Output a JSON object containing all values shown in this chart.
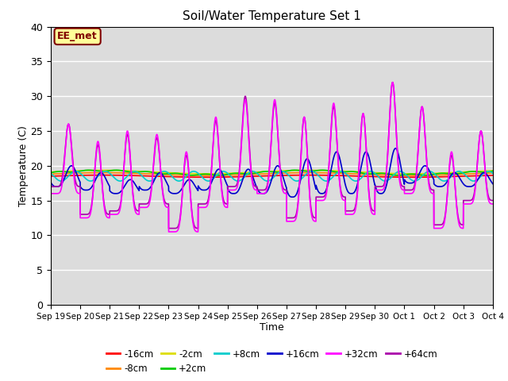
{
  "title": "Soil/Water Temperature Set 1",
  "xlabel": "Time",
  "ylabel": "Temperature (C)",
  "ylim": [
    0,
    40
  ],
  "background_color": "#dcdcdc",
  "annotation_text": "EE_met",
  "annotation_bg": "#ffff99",
  "annotation_border": "#800000",
  "grid_color": "#ffffff",
  "series": {
    "-16cm": {
      "color": "#ff0000",
      "lw": 1.2
    },
    "-8cm": {
      "color": "#ff8800",
      "lw": 1.2
    },
    "-2cm": {
      "color": "#dddd00",
      "lw": 1.2
    },
    "+2cm": {
      "color": "#00cc00",
      "lw": 1.2
    },
    "+8cm": {
      "color": "#00cccc",
      "lw": 1.2
    },
    "+16cm": {
      "color": "#0000cc",
      "lw": 1.2
    },
    "+32cm": {
      "color": "#ff00ff",
      "lw": 1.2
    },
    "+64cm": {
      "color": "#aa00aa",
      "lw": 1.2
    }
  },
  "tick_labels": [
    "Sep 19",
    "Sep 20",
    "Sep 21",
    "Sep 22",
    "Sep 23",
    "Sep 24",
    "Sep 25",
    "Sep 26",
    "Sep 27",
    "Sep 28",
    "Sep 29",
    "Sep 30",
    "Oct 1",
    "Oct 2",
    "Oct 3",
    "Oct 4"
  ],
  "yticks": [
    0,
    5,
    10,
    15,
    20,
    25,
    30,
    35,
    40
  ]
}
